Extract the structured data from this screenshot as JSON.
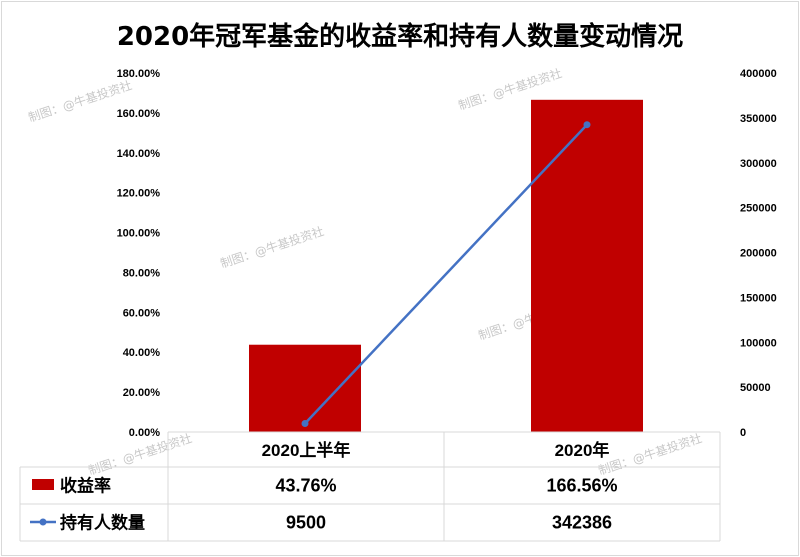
{
  "chart_data": {
    "type": "bar",
    "title": "2020年冠军基金的收益率和持有人数量变动情况",
    "categories": [
      "2020上半年",
      "2020年"
    ],
    "series": [
      {
        "name": "收益率",
        "type": "bar",
        "axis": "left",
        "values": [
          43.76,
          166.56
        ],
        "labels": [
          "43.76%",
          "166.56%"
        ],
        "color": "#c00000"
      },
      {
        "name": "持有人数量",
        "type": "line",
        "axis": "right",
        "values": [
          9500,
          342386
        ],
        "labels": [
          "9500",
          "342386"
        ],
        "color": "#4472c4"
      }
    ],
    "left_axis": {
      "min": 0,
      "max": 180,
      "step": 20,
      "tick_labels": [
        "0.00%",
        "20.00%",
        "40.00%",
        "60.00%",
        "80.00%",
        "100.00%",
        "120.00%",
        "140.00%",
        "160.00%",
        "180.00%"
      ]
    },
    "right_axis": {
      "min": 0,
      "max": 400000,
      "step": 50000,
      "tick_labels": [
        "0",
        "50000",
        "100000",
        "150000",
        "200000",
        "250000",
        "300000",
        "350000",
        "400000"
      ]
    },
    "data_table": true,
    "legend": "data-table"
  },
  "watermark": "制图：@牛基投资社"
}
